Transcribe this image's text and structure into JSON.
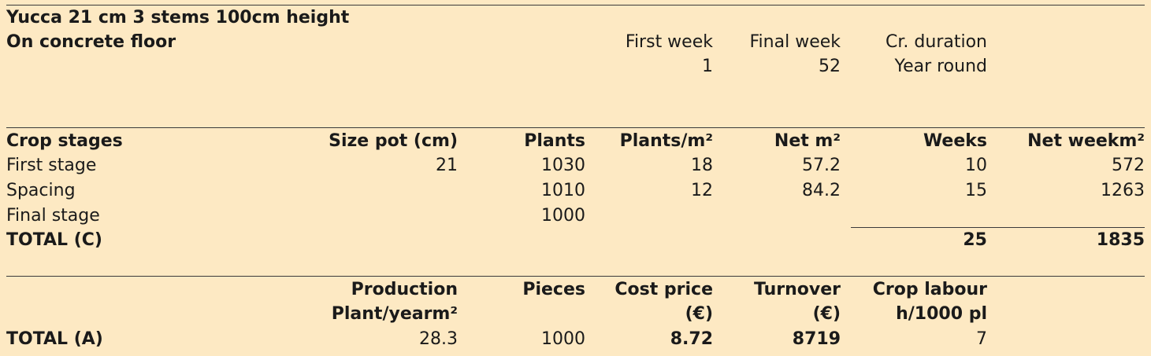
{
  "header": {
    "title": "Yucca 21 cm 3 stems 100cm height",
    "subtitle": "On concrete floor",
    "first_week_label": "First week",
    "first_week_value": "1",
    "final_week_label": "Final week",
    "final_week_value": "52",
    "duration_label": "Cr. duration",
    "duration_value": "Year round"
  },
  "stages": {
    "headers": [
      "Crop stages",
      "Size pot (cm)",
      "Plants",
      "Plants/m²",
      "Net m²",
      "Weeks",
      "Net weekm²"
    ],
    "rows": [
      [
        "First stage",
        "21",
        "1030",
        "18",
        "57.2",
        "10",
        "572"
      ],
      [
        "Spacing",
        "",
        "1010",
        "12",
        "84.2",
        "15",
        "1263"
      ],
      [
        "Final stage",
        "",
        "1000",
        "",
        "",
        "",
        ""
      ]
    ],
    "total_label": "TOTAL (C)",
    "total_weeks": "25",
    "total_net_weekm2": "1835"
  },
  "summary": {
    "production_label_1": "Production",
    "production_label_2": "Plant/yearm²",
    "pieces_label": "Pieces",
    "cost_label_1": "Cost price",
    "cost_label_2": "(€)",
    "turnover_label_1": "Turnover",
    "turnover_label_2": "(€)",
    "labour_label_1": "Crop labour",
    "labour_label_2": "h/1000 pl",
    "total_label": "TOTAL (A)",
    "production_value": "28.3",
    "pieces_value": "1000",
    "cost_value": "8.72",
    "turnover_value": "8719",
    "labour_value": "7"
  }
}
